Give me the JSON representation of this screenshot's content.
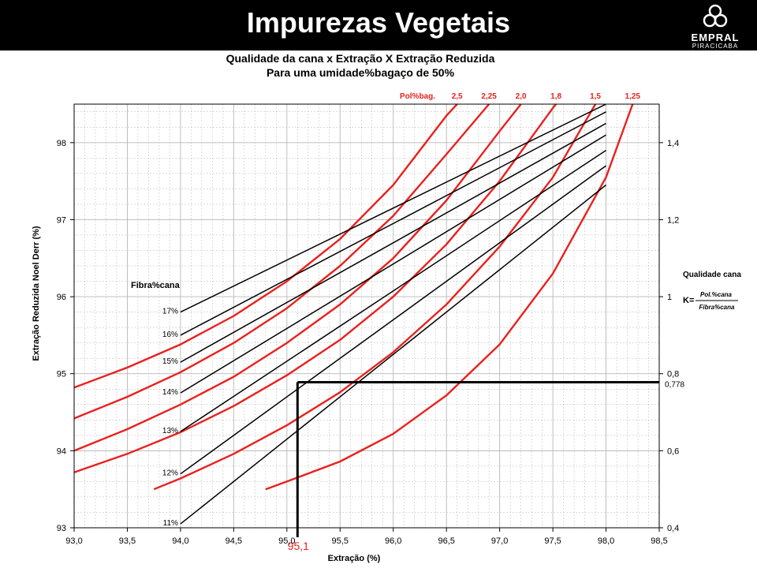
{
  "header": {
    "title": "Impurezas Vegetais",
    "logo_text": "EMPRAL",
    "logo_subtext": "PIRACICABA"
  },
  "colors": {
    "red": "#e8211e",
    "black": "#000000",
    "grid": "#b8b8b8"
  },
  "chart_data": {
    "type": "line",
    "title": "Qualidade da cana x Extração X Extração Reduzida",
    "subtitle": "Para uma umidade%bagaço de 50%",
    "xlabel": "Extração (%)",
    "ylabel": "Extração Reduzida Noel Derr (%)",
    "xlim": [
      93.0,
      98.5
    ],
    "ylim": [
      93,
      98.5
    ],
    "x_ticks": [
      "93,0",
      "93,5",
      "94,0",
      "94,5",
      "95,0",
      "95,5",
      "96,0",
      "96,5",
      "97,0",
      "97,5",
      "98,0",
      "98,5"
    ],
    "y_ticks": [
      "93",
      "94",
      "95",
      "96",
      "97",
      "98"
    ],
    "y_tick_values": [
      93,
      94,
      95,
      96,
      97,
      98
    ],
    "right_axis": {
      "ticks": [
        "0,4",
        "0,6",
        "0,8",
        "1",
        "1,2",
        "1,4"
      ],
      "tick_values": [
        0.4,
        0.6,
        0.8,
        1.0,
        1.2,
        1.4
      ],
      "range": [
        0.4,
        1.5
      ],
      "label": "Qualidade cana",
      "formula_k": "K=",
      "formula_num": "Pol.%cana",
      "formula_den": "Fibra%cana"
    },
    "pol_bag_label": "Pol%bag.",
    "pol_bag_series": [
      {
        "name": "2,5",
        "color": "#e8211e",
        "points": [
          [
            93.0,
            94.82
          ],
          [
            93.5,
            95.08
          ],
          [
            94.0,
            95.38
          ],
          [
            94.5,
            95.75
          ],
          [
            95.0,
            96.2
          ],
          [
            95.5,
            96.75
          ],
          [
            96.0,
            97.45
          ],
          [
            96.5,
            98.35
          ],
          [
            96.6,
            98.5
          ]
        ]
      },
      {
        "name": "2,25",
        "color": "#e8211e",
        "points": [
          [
            93.0,
            94.42
          ],
          [
            93.5,
            94.7
          ],
          [
            94.0,
            95.02
          ],
          [
            94.5,
            95.4
          ],
          [
            95.0,
            95.85
          ],
          [
            95.5,
            96.4
          ],
          [
            96.0,
            97.05
          ],
          [
            96.5,
            97.85
          ],
          [
            96.9,
            98.5
          ]
        ]
      },
      {
        "name": "2,0",
        "color": "#e8211e",
        "points": [
          [
            93.0,
            94.0
          ],
          [
            93.5,
            94.28
          ],
          [
            94.0,
            94.6
          ],
          [
            94.5,
            94.96
          ],
          [
            95.0,
            95.4
          ],
          [
            95.5,
            95.9
          ],
          [
            96.0,
            96.5
          ],
          [
            96.5,
            97.25
          ],
          [
            97.0,
            98.15
          ],
          [
            97.2,
            98.5
          ]
        ]
      },
      {
        "name": "1,8",
        "color": "#e8211e",
        "points": [
          [
            93.0,
            93.72
          ],
          [
            93.5,
            93.96
          ],
          [
            94.0,
            94.24
          ],
          [
            94.5,
            94.58
          ],
          [
            95.0,
            94.98
          ],
          [
            95.5,
            95.44
          ],
          [
            96.0,
            96.0
          ],
          [
            96.5,
            96.68
          ],
          [
            97.0,
            97.5
          ],
          [
            97.5,
            98.45
          ],
          [
            97.53,
            98.5
          ]
        ]
      },
      {
        "name": "1,5",
        "color": "#e8211e",
        "points": [
          [
            93.75,
            93.5
          ],
          [
            94.0,
            93.64
          ],
          [
            94.5,
            93.96
          ],
          [
            95.0,
            94.33
          ],
          [
            95.5,
            94.76
          ],
          [
            96.0,
            95.28
          ],
          [
            96.5,
            95.9
          ],
          [
            97.0,
            96.65
          ],
          [
            97.5,
            97.55
          ],
          [
            97.9,
            98.5
          ]
        ]
      },
      {
        "name": "1,25",
        "color": "#e8211e",
        "points": [
          [
            94.8,
            93.5
          ],
          [
            95.0,
            93.6
          ],
          [
            95.5,
            93.86
          ],
          [
            96.0,
            94.22
          ],
          [
            96.5,
            94.72
          ],
          [
            97.0,
            95.38
          ],
          [
            97.5,
            96.3
          ],
          [
            98.0,
            97.55
          ],
          [
            98.25,
            98.5
          ]
        ]
      }
    ],
    "fibra_label": "Fibra%cana",
    "fibra_series": [
      {
        "name": "17%",
        "points": [
          [
            94.0,
            95.8
          ],
          [
            98.0,
            98.5
          ]
        ]
      },
      {
        "name": "16%",
        "points": [
          [
            94.0,
            95.5
          ],
          [
            98.0,
            98.4
          ]
        ]
      },
      {
        "name": "15%",
        "points": [
          [
            94.0,
            95.15
          ],
          [
            98.0,
            98.25
          ]
        ]
      },
      {
        "name": "14%",
        "points": [
          [
            94.0,
            94.75
          ],
          [
            98.0,
            98.1
          ]
        ]
      },
      {
        "name": "13%",
        "points": [
          [
            94.0,
            94.25
          ],
          [
            98.0,
            97.9
          ]
        ]
      },
      {
        "name": "12%",
        "points": [
          [
            94.0,
            93.7
          ],
          [
            98.0,
            97.7
          ]
        ]
      },
      {
        "name": "11%",
        "points": [
          [
            94.0,
            93.05
          ],
          [
            98.0,
            97.45
          ]
        ]
      }
    ],
    "annotation": {
      "x": 95.1,
      "y": 94.89,
      "x_label": "95,1",
      "right_label": "0,778"
    }
  }
}
